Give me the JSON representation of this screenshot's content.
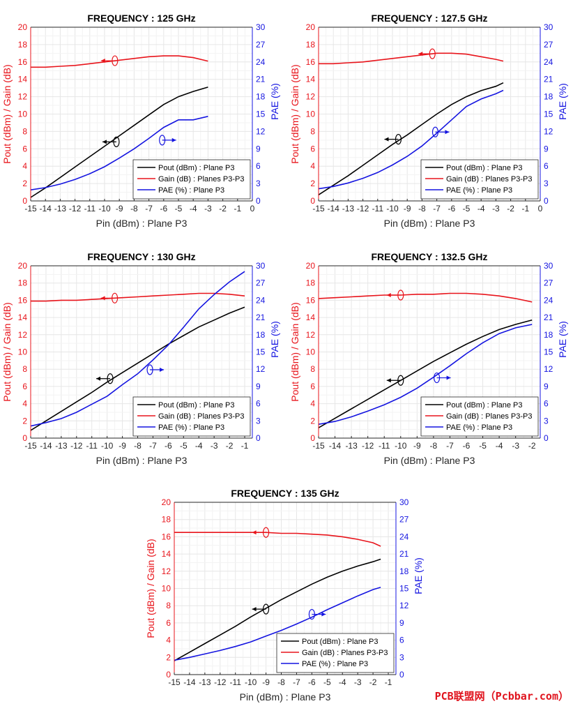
{
  "watermark": "PCB联盟网（Pcbbar.com）",
  "colors": {
    "pout": "#000000",
    "gain": "#e8141b",
    "pae": "#1414e0",
    "grid": "#e6e6e6",
    "axis": "#262626"
  },
  "chart_data": [
    {
      "type": "line",
      "title": "FREQUENCY : 125 GHz",
      "xlabel": "Pin (dBm) : Plane P3",
      "ylabel_left": "Pout (dBm) / Gain (dB)",
      "ylabel_right": "PAE (%)",
      "xlim": [
        -15,
        0
      ],
      "ylim_left": [
        0,
        20
      ],
      "ylim_right": [
        0,
        30
      ],
      "xticks": [
        "-15",
        "-14",
        "-13",
        "-12",
        "-11",
        "-10",
        "-9",
        "-8",
        "-7",
        "-6",
        "-5",
        "-4",
        "-3",
        "-2",
        "-1",
        "0"
      ],
      "yticks_left": [
        "0",
        "2",
        "4",
        "6",
        "8",
        "10",
        "12",
        "14",
        "16",
        "18",
        "20"
      ],
      "yticks_right": [
        "0",
        "3",
        "6",
        "9",
        "12",
        "15",
        "18",
        "21",
        "24",
        "27",
        "30"
      ],
      "legend": [
        "Pout (dBm) : Plane P3",
        "Gain (dB) : Planes P3-P3",
        "PAE (%) : Plane P3"
      ],
      "legend_position": "lower-right",
      "grid": true,
      "series": [
        {
          "name": "Pout (dBm) : Plane P3",
          "axis": "left",
          "x": [
            -15,
            -14,
            -13,
            -12,
            -11,
            -10,
            -9,
            -8,
            -7,
            -6,
            -5,
            -4,
            -3
          ],
          "y": [
            0.4,
            1.5,
            2.7,
            3.9,
            5.1,
            6.3,
            7.5,
            8.7,
            9.9,
            11.1,
            12.0,
            12.6,
            13.1
          ]
        },
        {
          "name": "Gain (dB) : Planes P3-P3",
          "axis": "left",
          "x": [
            -15,
            -14,
            -13,
            -12,
            -11,
            -10,
            -9,
            -8,
            -7,
            -6,
            -5,
            -4,
            -3
          ],
          "y": [
            15.4,
            15.4,
            15.5,
            15.6,
            15.8,
            16.0,
            16.2,
            16.4,
            16.6,
            16.7,
            16.7,
            16.5,
            16.1
          ]
        },
        {
          "name": "PAE (%) : Plane P3",
          "axis": "right",
          "x": [
            -15,
            -14,
            -13,
            -12,
            -11,
            -10,
            -9,
            -8,
            -7,
            -6,
            -5,
            -4,
            -3
          ],
          "y": [
            1.9,
            2.3,
            2.9,
            3.7,
            4.7,
            5.9,
            7.4,
            9.0,
            10.8,
            12.7,
            14.0,
            14.0,
            14.6
          ]
        }
      ]
    },
    {
      "type": "line",
      "title": "FREQUENCY : 127.5 GHz",
      "xlabel": "Pin (dBm) : Plane P3",
      "ylabel_left": "Pout (dBm) / Gain (dB)",
      "ylabel_right": "PAE (%)",
      "xlim": [
        -15,
        0
      ],
      "ylim_left": [
        0,
        20
      ],
      "ylim_right": [
        0,
        30
      ],
      "xticks": [
        "-15",
        "-14",
        "-13",
        "-12",
        "-11",
        "-10",
        "-9",
        "-8",
        "-7",
        "-6",
        "-5",
        "-4",
        "-3",
        "-2",
        "-1",
        "0"
      ],
      "yticks_left": [
        "0",
        "2",
        "4",
        "6",
        "8",
        "10",
        "12",
        "14",
        "16",
        "18",
        "20"
      ],
      "yticks_right": [
        "0",
        "3",
        "6",
        "9",
        "12",
        "15",
        "18",
        "21",
        "24",
        "27",
        "30"
      ],
      "legend": [
        "Pout (dBm) : Plane P3",
        "Gain (dB) : Planes P3-P3",
        "PAE (%) : Plane P3"
      ],
      "legend_position": "lower-right",
      "grid": true,
      "series": [
        {
          "name": "Pout (dBm) : Plane P3",
          "axis": "left",
          "x": [
            -15,
            -14,
            -13,
            -12,
            -11,
            -10,
            -9,
            -8,
            -7,
            -6,
            -5,
            -4,
            -3,
            -2.5
          ],
          "y": [
            0.7,
            1.8,
            2.9,
            4.1,
            5.3,
            6.5,
            7.6,
            8.8,
            10.0,
            11.1,
            12.0,
            12.7,
            13.2,
            13.6
          ]
        },
        {
          "name": "Gain (dB) : Planes P3-P3",
          "axis": "left",
          "x": [
            -15,
            -14,
            -13,
            -12,
            -11,
            -10,
            -9,
            -8,
            -7,
            -6,
            -5,
            -4,
            -3,
            -2.5
          ],
          "y": [
            15.8,
            15.8,
            15.9,
            16.0,
            16.2,
            16.4,
            16.6,
            16.8,
            17.0,
            17.0,
            16.9,
            16.6,
            16.3,
            16.1
          ]
        },
        {
          "name": "PAE (%) : Plane P3",
          "axis": "right",
          "x": [
            -15,
            -14,
            -13,
            -12,
            -11,
            -10,
            -9,
            -8,
            -7,
            -6,
            -5,
            -4,
            -3,
            -2.5
          ],
          "y": [
            2.1,
            2.5,
            3.1,
            3.9,
            4.9,
            6.2,
            7.7,
            9.5,
            11.7,
            14.0,
            16.3,
            17.6,
            18.5,
            19.1
          ]
        }
      ]
    },
    {
      "type": "line",
      "title": "FREQUENCY : 130 GHz",
      "xlabel": "Pin (dBm) : Plane P3",
      "ylabel_left": "Pout (dBm) / Gain (dB)",
      "ylabel_right": "PAE (%)",
      "xlim": [
        -15,
        -0.5
      ],
      "ylim_left": [
        0,
        20
      ],
      "ylim_right": [
        0,
        30
      ],
      "xticks": [
        "-15",
        "-14",
        "-13",
        "-12",
        "-11",
        "-10",
        "-9",
        "-8",
        "-7",
        "-6",
        "-5",
        "-4",
        "-3",
        "-2",
        "-1"
      ],
      "yticks_left": [
        "0",
        "2",
        "4",
        "6",
        "8",
        "10",
        "12",
        "14",
        "16",
        "18",
        "20"
      ],
      "yticks_right": [
        "0",
        "3",
        "6",
        "9",
        "12",
        "15",
        "18",
        "21",
        "24",
        "27",
        "30"
      ],
      "legend": [
        "Pout (dBm) : Plane P3",
        "Gain (dB) : Planes P3-P3",
        "PAE (%) : Plane P3"
      ],
      "legend_position": "lower-right",
      "grid": true,
      "series": [
        {
          "name": "Pout (dBm) : Plane P3",
          "axis": "left",
          "x": [
            -15,
            -14,
            -13,
            -12,
            -11,
            -10,
            -9,
            -8,
            -7,
            -6,
            -5,
            -4,
            -3,
            -2,
            -1
          ],
          "y": [
            0.9,
            2.0,
            3.1,
            4.2,
            5.3,
            6.5,
            7.6,
            8.7,
            9.8,
            10.9,
            11.9,
            12.9,
            13.7,
            14.5,
            15.2
          ]
        },
        {
          "name": "Gain (dB) : Planes P3-P3",
          "axis": "left",
          "x": [
            -15,
            -14,
            -13,
            -12,
            -11,
            -10,
            -9,
            -8,
            -7,
            -6,
            -5,
            -4,
            -3,
            -2,
            -1
          ],
          "y": [
            15.9,
            15.9,
            16.0,
            16.0,
            16.1,
            16.2,
            16.3,
            16.4,
            16.5,
            16.6,
            16.7,
            16.8,
            16.8,
            16.7,
            16.5
          ]
        },
        {
          "name": "PAE (%) : Plane P3",
          "axis": "right",
          "x": [
            -15,
            -14,
            -13,
            -12,
            -11,
            -10,
            -9,
            -8,
            -7,
            -6,
            -5,
            -4,
            -3,
            -2,
            -1
          ],
          "y": [
            2.1,
            2.7,
            3.4,
            4.5,
            5.9,
            7.3,
            9.3,
            11.2,
            13.6,
            16.2,
            19.3,
            22.5,
            25.0,
            27.2,
            29.0
          ]
        }
      ]
    },
    {
      "type": "line",
      "title": "FREQUENCY : 132.5 GHz",
      "xlabel": "Pin (dBm) : Plane P3",
      "ylabel_left": "Pout (dBm) / Gain (dB)",
      "ylabel_right": "PAE (%)",
      "xlim": [
        -15,
        -1.5
      ],
      "ylim_left": [
        0,
        20
      ],
      "ylim_right": [
        0,
        30
      ],
      "xticks": [
        "-15",
        "-14",
        "-13",
        "-12",
        "-11",
        "-10",
        "-9",
        "-8",
        "-7",
        "-6",
        "-5",
        "-4",
        "-3",
        "-2"
      ],
      "yticks_left": [
        "0",
        "2",
        "4",
        "6",
        "8",
        "10",
        "12",
        "14",
        "16",
        "18",
        "20"
      ],
      "yticks_right": [
        "0",
        "3",
        "6",
        "9",
        "12",
        "15",
        "18",
        "21",
        "24",
        "27",
        "30"
      ],
      "legend": [
        "Pout (dBm) : Plane P3",
        "Gain (dB) : Planes P3-P3",
        "PAE (%) : Plane P3"
      ],
      "legend_position": "lower-right",
      "grid": true,
      "series": [
        {
          "name": "Pout (dBm) : Plane P3",
          "axis": "left",
          "x": [
            -15,
            -14,
            -13,
            -12,
            -11,
            -10,
            -9,
            -8,
            -7,
            -6,
            -5,
            -4,
            -3,
            -2
          ],
          "y": [
            1.2,
            2.3,
            3.4,
            4.5,
            5.6,
            6.7,
            7.8,
            8.9,
            9.9,
            10.9,
            11.8,
            12.6,
            13.2,
            13.7
          ]
        },
        {
          "name": "Gain (dB) : Planes P3-P3",
          "axis": "left",
          "x": [
            -15,
            -14,
            -13,
            -12,
            -11,
            -10,
            -9,
            -8,
            -7,
            -6,
            -5,
            -4,
            -3,
            -2
          ],
          "y": [
            16.2,
            16.3,
            16.4,
            16.5,
            16.6,
            16.6,
            16.7,
            16.7,
            16.8,
            16.8,
            16.7,
            16.5,
            16.2,
            15.8
          ]
        },
        {
          "name": "PAE (%) : Plane P3",
          "axis": "right",
          "x": [
            -15,
            -14,
            -13,
            -12,
            -11,
            -10,
            -9,
            -8,
            -7,
            -6,
            -5,
            -4,
            -3,
            -2
          ],
          "y": [
            2.4,
            2.9,
            3.7,
            4.7,
            5.8,
            7.1,
            8.7,
            10.6,
            12.6,
            14.7,
            16.6,
            18.2,
            19.2,
            19.8
          ]
        }
      ]
    },
    {
      "type": "line",
      "title": "FREQUENCY : 135 GHz",
      "xlabel": "Pin (dBm) : Plane P3",
      "ylabel_left": "Pout (dBm) / Gain (dB)",
      "ylabel_right": "PAE (%)",
      "xlim": [
        -15,
        -0.5
      ],
      "ylim_left": [
        0,
        20
      ],
      "ylim_right": [
        0,
        30
      ],
      "xticks": [
        "-15",
        "-14",
        "-13",
        "-12",
        "-11",
        "-10",
        "-9",
        "-8",
        "-7",
        "-6",
        "-5",
        "-4",
        "-3",
        "-2",
        "-1"
      ],
      "yticks_left": [
        "0",
        "2",
        "4",
        "6",
        "8",
        "10",
        "12",
        "14",
        "16",
        "18",
        "20"
      ],
      "yticks_right": [
        "0",
        "3",
        "6",
        "9",
        "12",
        "15",
        "18",
        "21",
        "24",
        "27",
        "30"
      ],
      "legend": [
        "Pout (dBm) : Plane P3",
        "Gain (dB) : Planes P3-P3",
        "PAE (%) : Plane P3"
      ],
      "legend_position": "lower-right",
      "grid": true,
      "series": [
        {
          "name": "Pout (dBm) : Plane P3",
          "axis": "left",
          "x": [
            -15,
            -14,
            -13,
            -12,
            -11,
            -10,
            -9,
            -8,
            -7,
            -6,
            -5,
            -4,
            -3,
            -2,
            -1.5
          ],
          "y": [
            1.6,
            2.6,
            3.6,
            4.6,
            5.6,
            6.7,
            7.7,
            8.7,
            9.6,
            10.5,
            11.3,
            12.0,
            12.6,
            13.1,
            13.4
          ]
        },
        {
          "name": "Gain (dB) : Planes P3-P3",
          "axis": "left",
          "x": [
            -15,
            -14,
            -13,
            -12,
            -11,
            -10,
            -9,
            -8,
            -7,
            -6,
            -5,
            -4,
            -3,
            -2,
            -1.5
          ],
          "y": [
            16.5,
            16.5,
            16.5,
            16.5,
            16.5,
            16.5,
            16.5,
            16.4,
            16.4,
            16.3,
            16.2,
            16.0,
            15.7,
            15.3,
            14.9
          ]
        },
        {
          "name": "PAE (%) : Plane P3",
          "axis": "right",
          "x": [
            -15,
            -14,
            -13,
            -12,
            -11,
            -10,
            -9,
            -8,
            -7,
            -6,
            -5,
            -4,
            -3,
            -2,
            -1.5
          ],
          "y": [
            2.5,
            3.0,
            3.6,
            4.2,
            4.9,
            5.7,
            6.7,
            7.7,
            8.8,
            10.0,
            11.3,
            12.5,
            13.7,
            14.8,
            15.2
          ]
        }
      ]
    }
  ]
}
